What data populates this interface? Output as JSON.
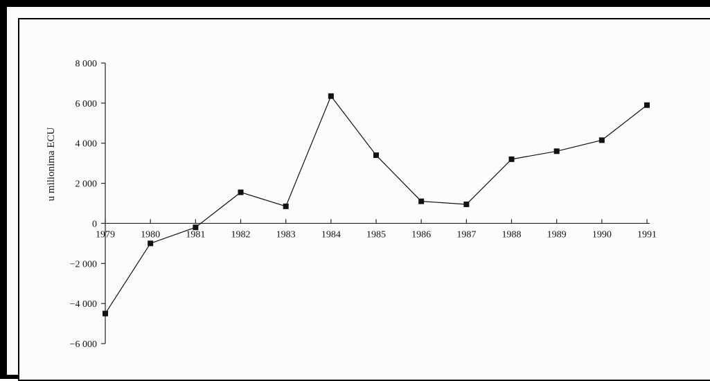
{
  "chart_data": {
    "type": "line",
    "title": "",
    "xlabel": "",
    "ylabel": "u milionima ECU",
    "categories": [
      "1979",
      "1980",
      "1981",
      "1982",
      "1983",
      "1984",
      "1985",
      "1986",
      "1987",
      "1988",
      "1989",
      "1990",
      "1991"
    ],
    "series": [
      {
        "values": [
          -4500,
          -1000,
          -200,
          1550,
          850,
          6350,
          3400,
          1100,
          950,
          3200,
          3600,
          4150,
          5900
        ]
      }
    ],
    "yticks": [
      {
        "value": 8000,
        "label": "8 000"
      },
      {
        "value": 6000,
        "label": "6 000"
      },
      {
        "value": 4000,
        "label": "4 000"
      },
      {
        "value": 2000,
        "label": "2 000"
      },
      {
        "value": 0,
        "label": "0"
      },
      {
        "value": -2000,
        "label": "−2 000"
      },
      {
        "value": -4000,
        "label": "−4 000"
      },
      {
        "value": -6000,
        "label": "−6 000"
      }
    ],
    "ylim": [
      -6000,
      8000
    ],
    "grid": false,
    "marker": "square",
    "line_color": "#111111",
    "marker_color": "#111111"
  }
}
